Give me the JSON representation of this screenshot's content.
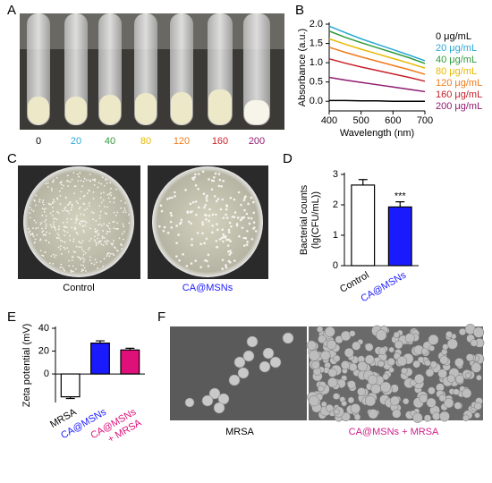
{
  "panel_labels": [
    "A",
    "B",
    "C",
    "D",
    "E",
    "F"
  ],
  "tubes": {
    "labels": [
      "0",
      "20",
      "40",
      "80",
      "120",
      "160",
      "200"
    ],
    "colors": [
      "#000000",
      "#2aa7d6",
      "#2e9b3a",
      "#e8b800",
      "#f07a1a",
      "#c8202a",
      "#8e1a6e"
    ]
  },
  "plates": [
    "Control",
    "CA@MSNs"
  ],
  "micrographs": [
    "MRSA",
    "CA@MSNs + MRSA"
  ],
  "chart_data": [
    {
      "type": "line",
      "xlabel": "Wavelength (nm)",
      "ylabel": "Absorbance (a.u.)",
      "x": [
        400,
        450,
        500,
        550,
        600,
        650,
        700
      ],
      "xlim": [
        400,
        700
      ],
      "xticks": [
        400,
        500,
        600,
        700
      ],
      "ylim": [
        -0.25,
        2.0
      ],
      "yticks": [
        {
          "value": 2,
          "label": "2.0"
        },
        {
          "value": 1.5,
          "label": "1.5"
        },
        {
          "value": 1,
          "label": "1.0"
        },
        {
          "value": 0.5,
          "label": "0.5"
        },
        {
          "value": 0,
          "label": "0.0"
        }
      ],
      "series": [
        {
          "name": "0 μg/mL",
          "color": "#000000",
          "values": [
            0.02,
            0.02,
            0.01,
            0.01,
            0.0,
            0.0,
            0.0
          ]
        },
        {
          "name": "20 μg/mL",
          "color": "#2aa7d6",
          "values": [
            1.95,
            1.78,
            1.62,
            1.48,
            1.34,
            1.2,
            1.05
          ]
        },
        {
          "name": "40 μg/mL",
          "color": "#2e9b3a",
          "values": [
            1.82,
            1.66,
            1.52,
            1.39,
            1.26,
            1.13,
            0.98
          ]
        },
        {
          "name": "80 μg/mL",
          "color": "#e8b800",
          "values": [
            1.62,
            1.48,
            1.35,
            1.23,
            1.11,
            0.99,
            0.86
          ]
        },
        {
          "name": "120 μg/mL",
          "color": "#f07a1a",
          "values": [
            1.4,
            1.27,
            1.15,
            1.04,
            0.93,
            0.82,
            0.7
          ]
        },
        {
          "name": "160 μg/mL",
          "color": "#c8202a",
          "values": [
            1.1,
            0.99,
            0.89,
            0.8,
            0.71,
            0.62,
            0.52
          ]
        },
        {
          "name": "200 μg/mL",
          "color": "#8e1a6e",
          "values": [
            0.62,
            0.55,
            0.49,
            0.43,
            0.37,
            0.31,
            0.25
          ]
        }
      ]
    },
    {
      "type": "bar",
      "ylabel": [
        "Bacterial counts",
        "(lg(CFU/mL))"
      ],
      "categories": [
        [
          "Control"
        ],
        [
          "CA@MSNs"
        ]
      ],
      "label_colors": [
        "#000000",
        "#1a1aff"
      ],
      "values": [
        2.65,
        1.93
      ],
      "errors": [
        0.18,
        0.17
      ],
      "colors": [
        "#ffffff",
        "#1a1aff"
      ],
      "edgecolor": "#000000",
      "annotations": [
        null,
        "***"
      ],
      "ylim": [
        0,
        3
      ],
      "yticks": [
        0,
        1,
        2,
        3
      ]
    },
    {
      "type": "bar",
      "ylabel": [
        "Zeta potential (mV)"
      ],
      "categories": [
        [
          "MRSA"
        ],
        [
          "CA@MSNs"
        ],
        [
          "CA@MSNs",
          "+ MRSA"
        ]
      ],
      "label_colors": [
        "#000000",
        "#1a1aff",
        "#e0107a"
      ],
      "values": [
        -20,
        27,
        21
      ],
      "errors": [
        1.5,
        2,
        1.5
      ],
      "colors": [
        "#ffffff",
        "#1a1aff",
        "#e0107a"
      ],
      "edgecolor": "#000000",
      "annotations": [
        null,
        null,
        null
      ],
      "ylim": [
        -25,
        40
      ],
      "yticks": [
        0,
        20,
        40
      ]
    }
  ]
}
